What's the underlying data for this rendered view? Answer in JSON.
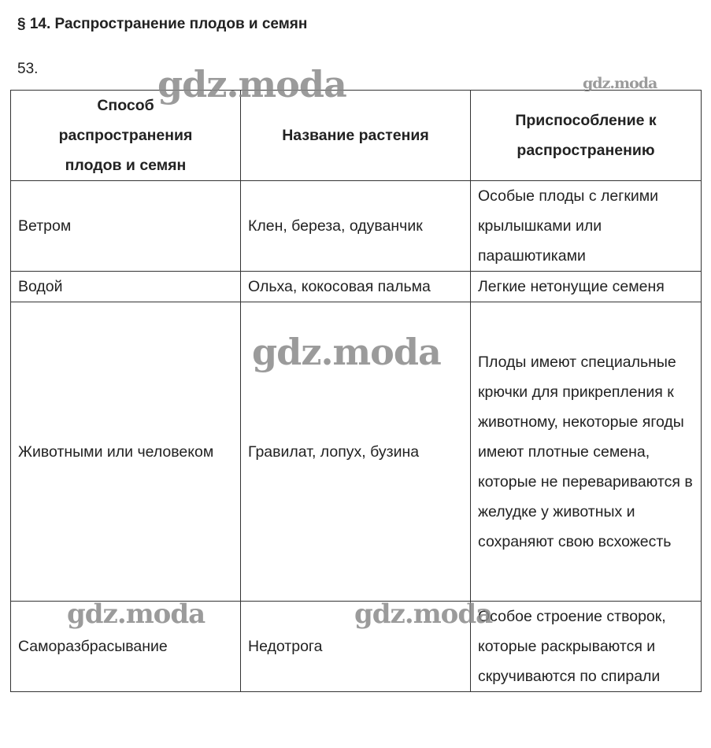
{
  "title": "§ 14. Распространение плодов и семян",
  "exercise_number": "53.",
  "table": {
    "headers": [
      "Способ распространения плодов и семян",
      "Название растения",
      "Приспособление к распространению"
    ],
    "rows": [
      [
        "Ветром",
        "Клен, береза, одуванчик",
        "Особые плоды с легкими крылышками или парашютиками"
      ],
      [
        "Водой",
        "Ольха, кокосовая пальма",
        "Легкие нетонущие семеня"
      ],
      [
        "Животными или человеком",
        "Гравилат, лопух, бузина",
        "Плоды имеют специальные крючки для прикрепления к животному, некоторые ягоды имеют плотные семена, которые не перевариваются в желудке у животных и сохраняют свою всхожесть"
      ],
      [
        "Саморазбрасывание",
        "Недотрога",
        "Особое строение створок, которые раскрываются и скручиваются по спирали"
      ]
    ]
  },
  "watermark": "gdz.moda"
}
